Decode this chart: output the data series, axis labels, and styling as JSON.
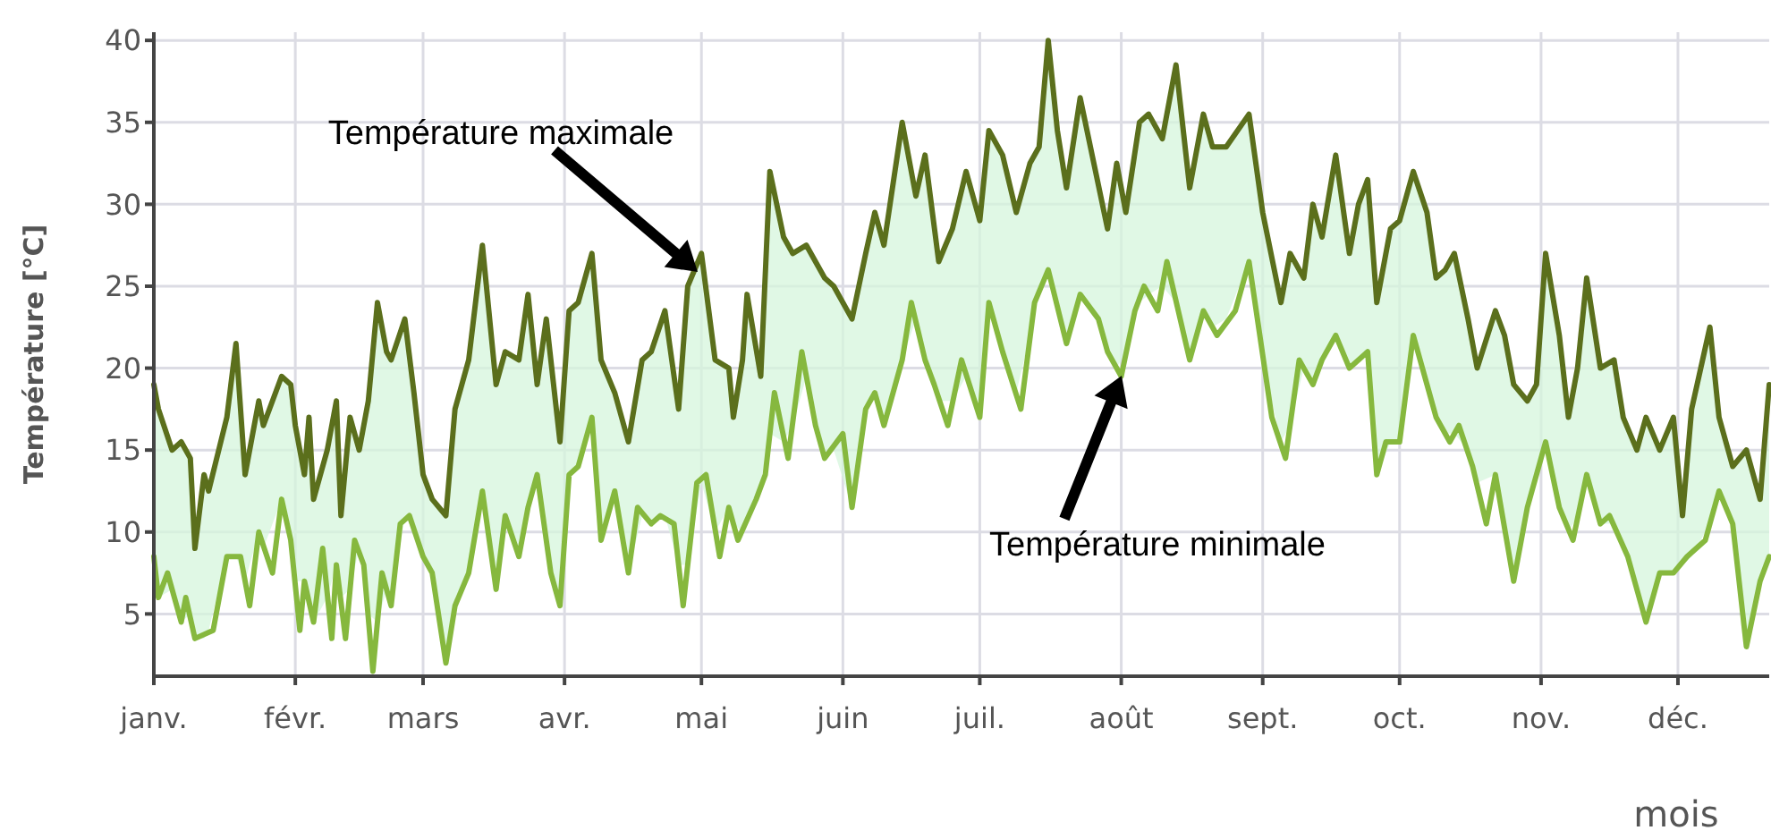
{
  "chart_data": {
    "type": "line",
    "xlabel": "mois",
    "ylabel": "Température [°C]",
    "xlim": [
      "--01-01",
      "--12-21"
    ],
    "ylim": [
      1.2,
      40.5
    ],
    "xticks": [
      {
        "value": "--01-01",
        "label": "janv."
      },
      {
        "value": "--02-01",
        "label": "févr."
      },
      {
        "value": "--03-01",
        "label": "mars"
      },
      {
        "value": "--04-01",
        "label": "avr."
      },
      {
        "value": "--05-01",
        "label": "mai"
      },
      {
        "value": "--06-01",
        "label": "juin"
      },
      {
        "value": "--07-01",
        "label": "juil."
      },
      {
        "value": "--08-01",
        "label": "août"
      },
      {
        "value": "--09-01",
        "label": "sept."
      },
      {
        "value": "--10-01",
        "label": "oct."
      },
      {
        "value": "--11-01",
        "label": "nov."
      },
      {
        "value": "--12-01",
        "label": "déc."
      }
    ],
    "yticks": [
      5,
      10,
      15,
      20,
      25,
      30,
      35,
      40
    ],
    "grid": true,
    "marker": "none",
    "line_style": "solid",
    "series": [
      {
        "color": "#5b6f1c",
        "x": [
          "--01-01",
          "--01-02",
          "--01-05",
          "--01-07",
          "--01-09",
          "--01-10",
          "--01-12",
          "--01-13",
          "--01-17",
          "--01-19",
          "--01-21",
          "--01-24",
          "--01-25",
          "--01-29",
          "--01-31",
          "--02-01",
          "--02-03",
          "--02-04",
          "--02-05",
          "--02-08",
          "--02-10",
          "--02-11",
          "--02-13",
          "--02-15",
          "--02-17",
          "--02-19",
          "--02-21",
          "--02-22",
          "--02-25",
          "--02-27",
          "--03-01",
          "--03-03",
          "--03-06",
          "--03-08",
          "--03-11",
          "--03-14",
          "--03-17",
          "--03-19",
          "--03-22",
          "--03-24",
          "--03-26",
          "--03-28",
          "--03-31",
          "--04-02",
          "--04-04",
          "--04-07",
          "--04-09",
          "--04-12",
          "--04-15",
          "--04-18",
          "--04-20",
          "--04-23",
          "--04-26",
          "--04-28",
          "--05-01",
          "--05-04",
          "--05-07",
          "--05-08",
          "--05-10",
          "--05-11",
          "--05-14",
          "--05-16",
          "--05-19",
          "--05-21",
          "--05-24",
          "--05-28",
          "--05-30",
          "--06-03",
          "--06-06",
          "--06-08",
          "--06-10",
          "--06-14",
          "--06-17",
          "--06-19",
          "--06-22",
          "--06-25",
          "--06-28",
          "--07-01",
          "--07-03",
          "--07-06",
          "--07-09",
          "--07-12",
          "--07-14",
          "--07-16",
          "--07-18",
          "--07-20",
          "--07-23",
          "--07-26",
          "--07-29",
          "--07-31",
          "--08-02",
          "--08-05",
          "--08-07",
          "--08-10",
          "--08-13",
          "--08-16",
          "--08-19",
          "--08-21",
          "--08-24",
          "--08-29",
          "--09-01",
          "--09-05",
          "--09-07",
          "--09-10",
          "--09-12",
          "--09-14",
          "--09-17",
          "--09-20",
          "--09-22",
          "--09-24",
          "--09-26",
          "--09-29",
          "--10-01",
          "--10-04",
          "--10-07",
          "--10-09",
          "--10-11",
          "--10-13",
          "--10-16",
          "--10-18",
          "--10-22",
          "--10-24",
          "--10-26",
          "--10-29",
          "--10-31",
          "--11-02",
          "--11-05",
          "--11-07",
          "--11-09",
          "--11-11",
          "--11-14",
          "--11-17",
          "--11-19",
          "--11-22",
          "--11-24",
          "--11-27",
          "--11-30",
          "--12-02",
          "--12-04",
          "--12-08",
          "--12-10",
          "--12-13",
          "--12-16",
          "--12-19",
          "--12-21"
        ],
        "values": [
          19,
          17.5,
          15,
          15.5,
          14.5,
          9,
          13.5,
          12.5,
          17,
          21.5,
          13.5,
          18,
          16.5,
          19.5,
          19,
          16.5,
          13.5,
          17,
          12,
          15,
          18,
          11,
          17,
          15,
          18,
          24,
          21,
          20.5,
          23,
          18.5,
          13.5,
          12,
          11,
          17.5,
          20.5,
          27.5,
          19,
          21,
          20.5,
          24.5,
          19,
          23,
          15.5,
          23.5,
          24,
          27,
          20.5,
          18.5,
          15.5,
          20.5,
          21,
          23.5,
          17.5,
          25,
          27,
          20.5,
          20,
          17,
          20.5,
          24.5,
          19.5,
          32,
          28,
          27,
          27.5,
          25.5,
          25,
          23,
          27,
          29.5,
          27.5,
          35,
          30.5,
          33,
          26.5,
          28.5,
          32,
          29,
          34.5,
          33,
          29.5,
          32.5,
          33.5,
          40,
          34.5,
          31,
          36.5,
          32.5,
          28.5,
          32.5,
          29.5,
          35,
          35.5,
          34,
          38.5,
          31,
          35.5,
          33.5,
          33.5,
          35.5,
          29.5,
          24,
          27,
          25.5,
          30,
          28,
          33,
          27,
          30,
          31.5,
          24,
          28.5,
          29,
          32,
          29.5,
          25.5,
          26,
          27,
          23,
          20,
          23.5,
          22,
          19,
          18,
          19,
          27,
          22,
          17,
          20,
          25.5,
          20,
          20.5,
          17,
          15,
          17,
          15,
          17,
          11,
          17.5,
          22.5,
          17,
          14,
          15,
          12,
          19
        ],
        "lower": [
          8.5,
          6,
          6.5,
          4.5,
          5,
          3.5,
          3.5,
          4,
          8.5,
          8.5,
          7,
          10,
          9,
          12,
          9.5,
          7,
          7,
          6,
          4.5,
          6,
          8,
          6,
          6.5,
          9,
          5,
          4.5,
          6.5,
          5.5,
          11,
          10,
          8.5,
          7.5,
          2,
          5.5,
          7.5,
          12.5,
          6.5,
          11,
          8.5,
          11.5,
          13.5,
          9.5,
          5.5,
          13.5,
          14,
          17,
          9.5,
          12.5,
          7.5,
          11,
          10.5,
          11,
          8,
          8,
          13,
          10,
          11.5,
          10.5,
          10,
          10.5,
          13,
          16,
          15.5,
          16.5,
          19.5,
          14.5,
          15,
          11.5,
          17.5,
          18.5,
          16.5,
          20.5,
          23,
          20.5,
          18,
          18,
          19.5,
          17,
          24,
          21,
          18.5,
          22,
          24.5,
          26,
          24,
          21.5,
          24.5,
          23.5,
          21,
          20,
          21,
          24,
          24.5,
          25,
          24,
          20.5,
          23.5,
          22.5,
          23,
          26.5,
          20.5,
          15.5,
          16.5,
          20,
          19,
          20.5,
          22,
          20,
          20.5,
          21,
          13.5,
          15.5,
          15.5,
          22,
          19,
          17,
          16,
          16,
          15,
          13,
          13.5,
          10,
          7,
          11.5,
          13.5,
          15.5,
          11.5,
          10,
          11,
          13.5,
          10.5,
          10.5,
          9,
          6.5,
          4.5,
          7.5,
          7.5,
          8,
          8.5,
          10.5,
          12.5,
          10.5,
          3,
          7,
          8.5
        ],
        "upper": [
          19,
          17.5,
          15,
          15.5,
          14.5,
          9,
          13.5,
          12.5,
          17,
          21.5,
          13.5,
          18,
          16.5,
          19.5,
          19,
          16.5,
          13.5,
          17,
          12,
          15,
          18,
          11,
          17,
          15,
          18,
          24,
          21,
          20.5,
          23,
          18.5,
          13.5,
          12,
          11,
          17.5,
          20.5,
          27.5,
          19,
          21,
          20.5,
          24.5,
          19,
          23,
          15.5,
          23.5,
          24,
          27,
          20.5,
          18.5,
          15.5,
          20.5,
          21,
          23.5,
          17.5,
          25,
          27,
          20.5,
          20,
          17,
          20.5,
          24.5,
          19.5,
          32,
          28,
          27,
          27.5,
          25.5,
          25,
          23,
          27,
          29.5,
          27.5,
          35,
          30.5,
          33,
          26.5,
          28.5,
          32,
          29,
          34.5,
          33,
          29.5,
          32.5,
          33.5,
          40,
          34.5,
          31,
          36.5,
          32.5,
          28.5,
          32.5,
          29.5,
          35,
          35.5,
          34,
          38.5,
          31,
          35.5,
          33.5,
          33.5,
          35.5,
          29.5,
          24,
          27,
          25.5,
          30,
          28,
          33,
          27,
          30,
          31.5,
          24,
          28.5,
          29,
          32,
          29.5,
          25.5,
          26,
          27,
          23,
          20,
          23.5,
          22,
          19,
          18,
          19,
          27,
          22,
          17,
          20,
          25.5,
          20,
          20.5,
          17,
          15,
          17,
          15,
          17,
          11,
          17.5,
          22.5,
          17,
          14,
          15,
          12,
          19
        ]
      },
      {
        "color": "#86b83e",
        "x": [
          "--01-01",
          "--01-02",
          "--01-04",
          "--01-07",
          "--01-08",
          "--01-10",
          "--01-14",
          "--01-17",
          "--01-20",
          "--01-22",
          "--01-24",
          "--01-27",
          "--01-29",
          "--01-31",
          "--02-02",
          "--02-03",
          "--02-05",
          "--02-07",
          "--02-09",
          "--02-10",
          "--02-12",
          "--02-14",
          "--02-16",
          "--02-18",
          "--02-20",
          "--02-22",
          "--02-24",
          "--02-26",
          "--03-01",
          "--03-03",
          "--03-06",
          "--03-08",
          "--03-11",
          "--03-14",
          "--03-17",
          "--03-19",
          "--03-22",
          "--03-24",
          "--03-26",
          "--03-29",
          "--03-31",
          "--04-02",
          "--04-04",
          "--04-07",
          "--04-09",
          "--04-12",
          "--04-15",
          "--04-17",
          "--04-20",
          "--04-22",
          "--04-25",
          "--04-27",
          "--04-30",
          "--05-02",
          "--05-05",
          "--05-07",
          "--05-09",
          "--05-13",
          "--05-15",
          "--05-17",
          "--05-20",
          "--05-23",
          "--05-26",
          "--05-28",
          "--06-01",
          "--06-03",
          "--06-06",
          "--06-08",
          "--06-10",
          "--06-14",
          "--06-16",
          "--06-19",
          "--06-21",
          "--06-24",
          "--06-27",
          "--07-01",
          "--07-03",
          "--07-06",
          "--07-10",
          "--07-13",
          "--07-16",
          "--07-20",
          "--07-23",
          "--07-27",
          "--07-29",
          "--08-01",
          "--08-04",
          "--08-06",
          "--08-09",
          "--08-11",
          "--08-16",
          "--08-19",
          "--08-22",
          "--08-26",
          "--08-29",
          "--09-03",
          "--09-06",
          "--09-09",
          "--09-12",
          "--09-14",
          "--09-17",
          "--09-20",
          "--09-24",
          "--09-26",
          "--09-28",
          "--10-01",
          "--10-04",
          "--10-07",
          "--10-09",
          "--10-12",
          "--10-14",
          "--10-17",
          "--10-20",
          "--10-22",
          "--10-26",
          "--10-29",
          "--11-02",
          "--11-05",
          "--11-08",
          "--11-11",
          "--11-14",
          "--11-16",
          "--11-20",
          "--11-24",
          "--11-27",
          "--11-30",
          "--12-03",
          "--12-07",
          "--12-10",
          "--12-13",
          "--12-16",
          "--12-19",
          "--12-21"
        ],
        "values": [
          8.5,
          6,
          7.5,
          4.5,
          6,
          3.5,
          4,
          8.5,
          8.5,
          5.5,
          10,
          7.5,
          12,
          9.5,
          4,
          7,
          4.5,
          9,
          3.5,
          8,
          3.5,
          9.5,
          8,
          1.5,
          7.5,
          5.5,
          10.5,
          11,
          8.5,
          7.5,
          2,
          5.5,
          7.5,
          12.5,
          6.5,
          11,
          8.5,
          11.5,
          13.5,
          7.5,
          5.5,
          13.5,
          14,
          17,
          9.5,
          12.5,
          7.5,
          11.5,
          10.5,
          11,
          10.5,
          5.5,
          13,
          13.5,
          8.5,
          11.5,
          9.5,
          12,
          13.5,
          18.5,
          14.5,
          21,
          16.5,
          14.5,
          16,
          11.5,
          17.5,
          18.5,
          16.5,
          20.5,
          24,
          20.5,
          19,
          16.5,
          20.5,
          17,
          24,
          21,
          17.5,
          24,
          26,
          21.5,
          24.5,
          23,
          21,
          19.5,
          23.5,
          25,
          23.5,
          26.5,
          20.5,
          23.5,
          22,
          23.5,
          26.5,
          17,
          14.5,
          20.5,
          19,
          20.5,
          22,
          20,
          21,
          13.5,
          15.5,
          15.5,
          22,
          19,
          17,
          15.5,
          16.5,
          14,
          10.5,
          13.5,
          7,
          11.5,
          15.5,
          11.5,
          9.5,
          13.5,
          10.5,
          11,
          8.5,
          4.5,
          7.5,
          7.5,
          8.5,
          9.5,
          12.5,
          10.5,
          3,
          7,
          8.5
        ]
      }
    ],
    "annotations": [
      "Température maximale",
      "Température minimale"
    ]
  }
}
